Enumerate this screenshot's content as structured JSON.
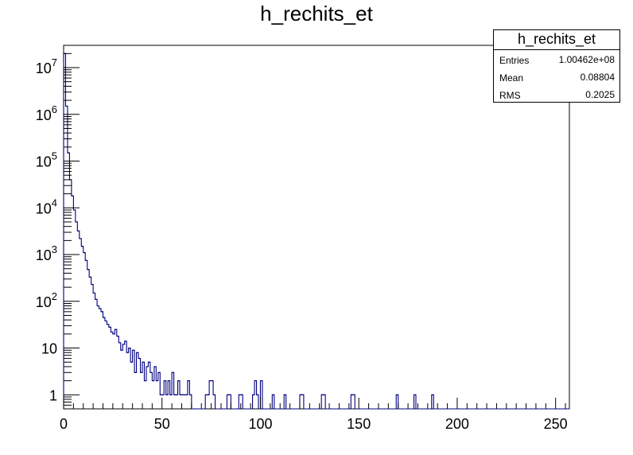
{
  "title": "h_rechits_et",
  "stats_box": {
    "title": "h_rechits_et",
    "rows": [
      {
        "label": "Entries",
        "value": "1.00462e+08"
      },
      {
        "label": "Mean",
        "value": "0.08804"
      },
      {
        "label": "RMS",
        "value": "0.2025"
      }
    ]
  },
  "chart_data": {
    "type": "bar",
    "title": "h_rechits_et",
    "xlabel": "",
    "ylabel": "",
    "xlim": [
      0,
      257
    ],
    "ylim": [
      0.5,
      30000000
    ],
    "yscale": "log",
    "grid": false,
    "line_color": "#000080",
    "bin_width": 1,
    "x_ticks": [
      0,
      50,
      100,
      150,
      200,
      250
    ],
    "x_tick_labels": [
      "0",
      "50",
      "100",
      "150",
      "200",
      "250"
    ],
    "y_ticks": [
      {
        "value": 1,
        "base": "1",
        "exp": ""
      },
      {
        "value": 10,
        "base": "10",
        "exp": ""
      },
      {
        "value": 100,
        "base": "10",
        "exp": "2"
      },
      {
        "value": 1000,
        "base": "10",
        "exp": "3"
      },
      {
        "value": 10000,
        "base": "10",
        "exp": "4"
      },
      {
        "value": 100000,
        "base": "10",
        "exp": "5"
      },
      {
        "value": 1000000,
        "base": "10",
        "exp": "6"
      },
      {
        "value": 10000000,
        "base": "10",
        "exp": "7"
      }
    ],
    "bins": [
      [
        0,
        20000000
      ],
      [
        1,
        1500000
      ],
      [
        2,
        150000
      ],
      [
        3,
        40000
      ],
      [
        4,
        18000
      ],
      [
        5,
        9000
      ],
      [
        6,
        5000
      ],
      [
        7,
        3200
      ],
      [
        8,
        2200
      ],
      [
        9,
        1500
      ],
      [
        10,
        1100
      ],
      [
        11,
        750
      ],
      [
        12,
        480
      ],
      [
        13,
        330
      ],
      [
        14,
        230
      ],
      [
        15,
        150
      ],
      [
        16,
        110
      ],
      [
        17,
        80
      ],
      [
        18,
        70
      ],
      [
        19,
        60
      ],
      [
        20,
        45
      ],
      [
        21,
        38
      ],
      [
        22,
        32
      ],
      [
        23,
        28
      ],
      [
        24,
        22
      ],
      [
        25,
        20
      ],
      [
        26,
        25
      ],
      [
        27,
        18
      ],
      [
        28,
        13
      ],
      [
        29,
        9
      ],
      [
        30,
        12
      ],
      [
        31,
        14
      ],
      [
        32,
        8
      ],
      [
        33,
        10
      ],
      [
        34,
        5
      ],
      [
        35,
        9
      ],
      [
        36,
        3
      ],
      [
        37,
        8
      ],
      [
        38,
        6
      ],
      [
        39,
        3
      ],
      [
        40,
        5
      ],
      [
        41,
        2
      ],
      [
        42,
        4
      ],
      [
        43,
        5
      ],
      [
        44,
        3
      ],
      [
        45,
        2
      ],
      [
        46,
        4
      ],
      [
        47,
        2
      ],
      [
        48,
        3
      ],
      [
        49,
        1
      ],
      [
        50,
        1
      ],
      [
        51,
        2
      ],
      [
        52,
        1
      ],
      [
        53,
        2
      ],
      [
        54,
        1
      ],
      [
        55,
        3
      ],
      [
        56,
        1
      ],
      [
        57,
        1
      ],
      [
        58,
        2
      ],
      [
        59,
        1
      ],
      [
        60,
        1
      ],
      [
        61,
        1
      ],
      [
        62,
        1
      ],
      [
        63,
        2
      ],
      [
        64,
        1
      ],
      [
        72,
        1
      ],
      [
        73,
        1
      ],
      [
        74,
        2
      ],
      [
        75,
        2
      ],
      [
        76,
        1
      ],
      [
        83,
        1
      ],
      [
        84,
        1
      ],
      [
        89,
        1
      ],
      [
        90,
        1
      ],
      [
        96,
        1
      ],
      [
        97,
        2
      ],
      [
        98,
        1
      ],
      [
        100,
        2
      ],
      [
        106,
        1
      ],
      [
        112,
        1
      ],
      [
        120,
        1
      ],
      [
        121,
        1
      ],
      [
        131,
        1
      ],
      [
        132,
        1
      ],
      [
        146,
        1
      ],
      [
        147,
        1
      ],
      [
        169,
        1
      ],
      [
        178,
        1
      ],
      [
        187,
        1
      ]
    ]
  }
}
